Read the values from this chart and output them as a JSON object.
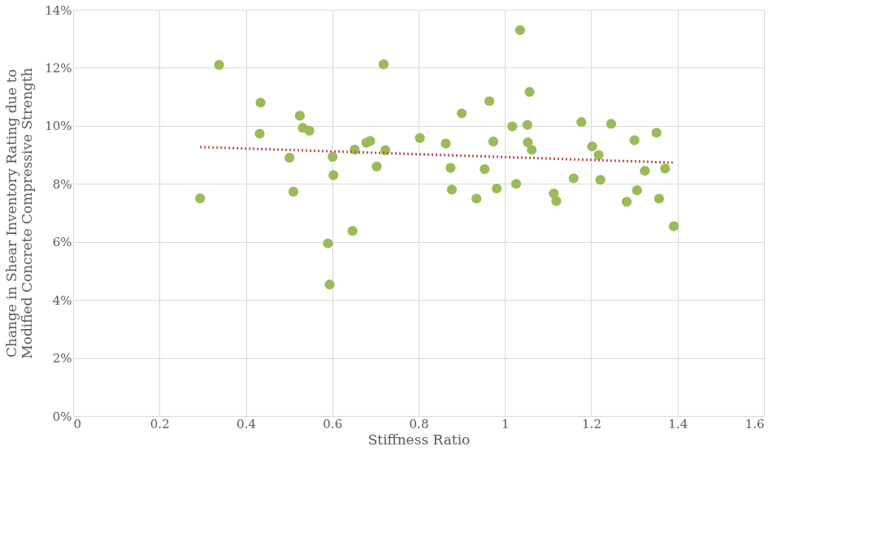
{
  "chart_data": {
    "type": "scatter",
    "xlabel": "Stiffness Ratio",
    "ylabel": "Change in Shear Inventory Rating due to Modified Concrete Compressive Strength",
    "xlim": [
      0,
      1.6
    ],
    "xticks": [
      {
        "value": 0,
        "label": "0"
      },
      0.2,
      0.4,
      0.6,
      0.8,
      {
        "value": 1,
        "label": "1"
      },
      1.2,
      1.4,
      1.6
    ],
    "ylim": [
      0,
      14
    ],
    "yticks": [
      {
        "value": 0,
        "label": "0%"
      },
      {
        "value": 2,
        "label": "2%"
      },
      {
        "value": 4,
        "label": "4%"
      },
      {
        "value": 6,
        "label": "6%"
      },
      {
        "value": 8,
        "label": "8%"
      },
      {
        "value": 10,
        "label": "10%"
      },
      {
        "value": 12,
        "label": "12%"
      },
      {
        "value": 14,
        "label": "14%"
      }
    ],
    "grid": true,
    "marker": "circle",
    "series": [
      {
        "color": "#9bbb59",
        "x": [
          0.294,
          0.338,
          0.434,
          0.432,
          0.501,
          0.51,
          0.525,
          0.532,
          0.547,
          0.59,
          0.594,
          0.601,
          0.603,
          0.647,
          0.652,
          0.679,
          0.688,
          0.703,
          0.719,
          0.723,
          0.803,
          0.863,
          0.874,
          0.877,
          0.9,
          0.964,
          0.934,
          0.953,
          0.973,
          0.981,
          1.017,
          1.026,
          1.035,
          1.052,
          1.053,
          1.057,
          1.062,
          1.113,
          1.119,
          1.159,
          1.177,
          1.202,
          1.217,
          1.221,
          1.246,
          1.282,
          1.3,
          1.306,
          1.324,
          1.351,
          1.357,
          1.371,
          1.391
        ],
        "values": [
          7.5,
          12.1,
          10.8,
          9.73,
          8.9,
          7.73,
          10.35,
          9.93,
          9.83,
          5.95,
          4.53,
          8.93,
          8.3,
          6.38,
          9.18,
          9.42,
          9.48,
          8.6,
          12.12,
          9.16,
          9.58,
          9.39,
          8.55,
          7.8,
          10.43,
          10.85,
          7.49,
          8.51,
          9.46,
          7.84,
          9.98,
          8.0,
          13.3,
          10.03,
          9.43,
          11.17,
          9.17,
          7.67,
          7.41,
          8.19,
          10.13,
          9.29,
          8.99,
          8.14,
          10.07,
          7.38,
          9.5,
          7.78,
          8.45,
          9.76,
          7.49,
          8.53,
          6.54
        ]
      },
      {
        "type": "line",
        "color": "#c0504d",
        "line_style": "dotted",
        "marker": "none",
        "x": [
          0.294,
          1.391
        ],
        "values": [
          9.27,
          8.73
        ]
      }
    ]
  }
}
